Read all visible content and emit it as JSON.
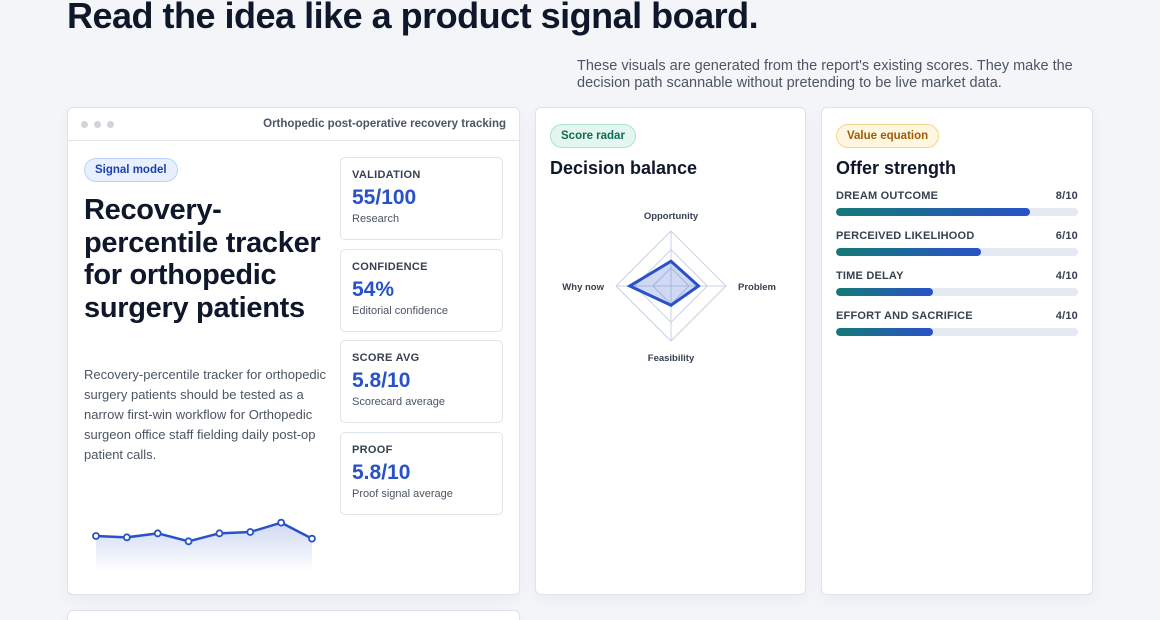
{
  "header": {
    "title": "Read the idea like a product signal board.",
    "intro": "These visuals are generated from the report's existing scores. They make the decision path scannable without pretending to be live market data."
  },
  "signal_card": {
    "window_title": "Orthopedic post-operative recovery tracking",
    "badge": "Signal model",
    "idea_title": "Recovery-percentile tracker for orthopedic surgery patients",
    "summary": "Recovery-percentile tracker for orthopedic surgery patients should be tested as a narrow first-win workflow for Orthopedic surgeon office staff fielding daily post-op patient calls.",
    "metrics": [
      {
        "label": "VALIDATION",
        "value": "55/100",
        "sub": "Research"
      },
      {
        "label": "CONFIDENCE",
        "value": "54%",
        "sub": "Editorial confidence"
      },
      {
        "label": "SCORE AVG",
        "value": "5.8/10",
        "sub": "Scorecard average"
      },
      {
        "label": "PROOF",
        "value": "5.8/10",
        "sub": "Proof signal average"
      }
    ],
    "sparkline": [
      6.0,
      5.9,
      6.2,
      5.6,
      6.2,
      6.3,
      7.0,
      5.8
    ]
  },
  "radar_card": {
    "badge": "Score radar",
    "heading": "Decision balance",
    "axes": [
      "Opportunity",
      "Problem",
      "Feasibility",
      "Why now"
    ],
    "values": [
      0.45,
      0.5,
      0.35,
      0.75
    ]
  },
  "value_card": {
    "badge": "Value equation",
    "heading": "Offer strength",
    "bars": [
      {
        "label": "DREAM OUTCOME",
        "score": "8/10",
        "value": 8
      },
      {
        "label": "PERCEIVED LIKELIHOOD",
        "score": "6/10",
        "value": 6
      },
      {
        "label": "TIME DELAY",
        "score": "4/10",
        "value": 4
      },
      {
        "label": "EFFORT AND SACRIFICE",
        "score": "4/10",
        "value": 4
      }
    ]
  },
  "colors": {
    "accent": "#2952c8",
    "teal": "#137a76"
  }
}
